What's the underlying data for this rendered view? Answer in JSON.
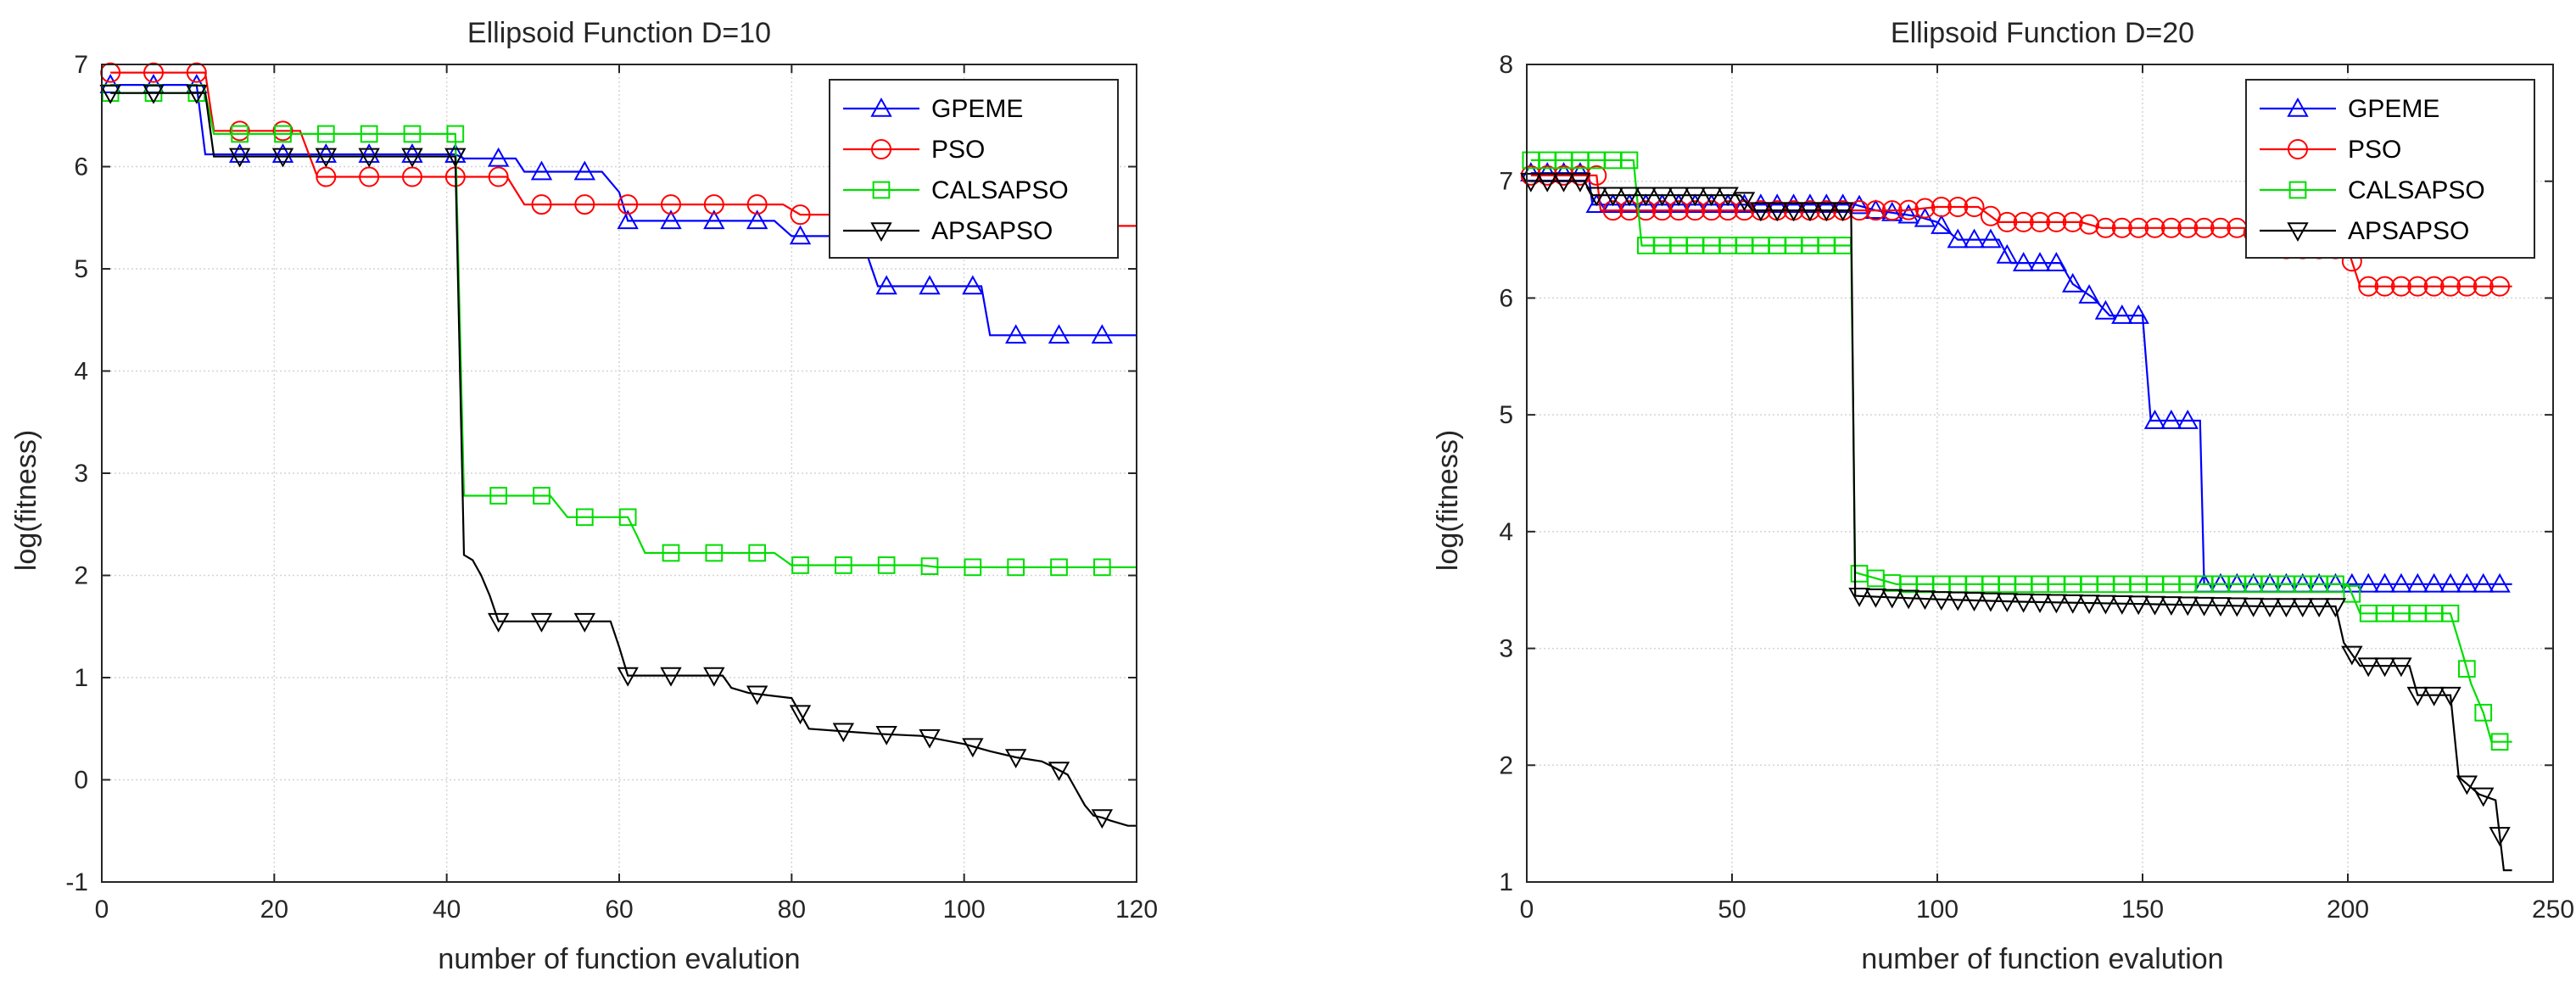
{
  "chart_data": [
    {
      "type": "line",
      "title": "Ellipsoid Function D=10",
      "xlabel": "number of function evalution",
      "ylabel": "log(fitness)",
      "xlim": [
        0,
        120
      ],
      "ylim": [
        -1,
        7
      ],
      "xticks": [
        0,
        20,
        40,
        60,
        80,
        100,
        120
      ],
      "yticks": [
        -1,
        0,
        1,
        2,
        3,
        4,
        5,
        6,
        7
      ],
      "grid": true,
      "legend_position": "top-right",
      "marker_every": 5,
      "series": [
        {
          "name": "GPEME",
          "color": "#0000ff",
          "marker": "triangle-up",
          "points": [
            [
              1,
              6.8
            ],
            [
              11,
              6.8
            ],
            [
              12,
              6.12
            ],
            [
              41,
              6.12
            ],
            [
              42,
              6.08
            ],
            [
              48,
              6.08
            ],
            [
              49,
              5.95
            ],
            [
              58,
              5.95
            ],
            [
              60,
              5.75
            ],
            [
              61,
              5.47
            ],
            [
              78,
              5.47
            ],
            [
              80,
              5.32
            ],
            [
              88,
              5.32
            ],
            [
              90,
              4.83
            ],
            [
              102,
              4.83
            ],
            [
              103,
              4.35
            ],
            [
              120,
              4.35
            ]
          ]
        },
        {
          "name": "PSO",
          "color": "#ff0000",
          "marker": "circle",
          "points": [
            [
              1,
              6.92
            ],
            [
              12,
              6.92
            ],
            [
              13,
              6.35
            ],
            [
              23,
              6.35
            ],
            [
              25,
              5.9
            ],
            [
              41,
              5.9
            ],
            [
              42,
              5.9
            ],
            [
              47,
              5.9
            ],
            [
              49,
              5.63
            ],
            [
              61,
              5.63
            ],
            [
              62,
              5.63
            ],
            [
              79,
              5.63
            ],
            [
              81,
              5.53
            ],
            [
              99,
              5.53
            ],
            [
              101,
              5.42
            ],
            [
              120,
              5.42
            ]
          ]
        },
        {
          "name": "CALSAPSO",
          "color": "#00dd00",
          "marker": "square",
          "points": [
            [
              1,
              6.72
            ],
            [
              12,
              6.72
            ],
            [
              13,
              6.32
            ],
            [
              41,
              6.32
            ],
            [
              42,
              2.78
            ],
            [
              52,
              2.78
            ],
            [
              54,
              2.57
            ],
            [
              61,
              2.57
            ],
            [
              62,
              2.4
            ],
            [
              63,
              2.22
            ],
            [
              78,
              2.22
            ],
            [
              80,
              2.1
            ],
            [
              95,
              2.1
            ],
            [
              97,
              2.08
            ],
            [
              120,
              2.08
            ]
          ]
        },
        {
          "name": "APSAPSO",
          "color": "#000000",
          "marker": "triangle-down",
          "points": [
            [
              1,
              6.72
            ],
            [
              12,
              6.72
            ],
            [
              13,
              6.1
            ],
            [
              41,
              6.1
            ],
            [
              42,
              2.2
            ],
            [
              43,
              2.15
            ],
            [
              44,
              2.0
            ],
            [
              45,
              1.8
            ],
            [
              46,
              1.55
            ],
            [
              59,
              1.55
            ],
            [
              60,
              1.3
            ],
            [
              61,
              1.02
            ],
            [
              72,
              1.02
            ],
            [
              73,
              0.9
            ],
            [
              75,
              0.85
            ],
            [
              80,
              0.8
            ],
            [
              82,
              0.5
            ],
            [
              90,
              0.45
            ],
            [
              95,
              0.43
            ],
            [
              100,
              0.35
            ],
            [
              103,
              0.28
            ],
            [
              106,
              0.22
            ],
            [
              109,
              0.18
            ],
            [
              110,
              0.14
            ],
            [
              112,
              0.05
            ],
            [
              113,
              -0.1
            ],
            [
              114,
              -0.25
            ],
            [
              115,
              -0.35
            ],
            [
              116,
              -0.37
            ],
            [
              117,
              -0.4
            ],
            [
              119,
              -0.45
            ],
            [
              120,
              -0.45
            ]
          ]
        }
      ]
    },
    {
      "type": "line",
      "title": "Ellipsoid Function D=20",
      "xlabel": "number of function evalution",
      "ylabel": "log(fitness)",
      "xlim": [
        0,
        250
      ],
      "ylim": [
        1,
        8
      ],
      "xticks": [
        0,
        50,
        100,
        150,
        200,
        250
      ],
      "yticks": [
        1,
        2,
        3,
        4,
        5,
        6,
        7,
        8
      ],
      "grid": true,
      "legend_position": "top-right",
      "marker_every": 4,
      "series": [
        {
          "name": "GPEME",
          "color": "#0000ff",
          "marker": "triangle-up",
          "points": [
            [
              1,
              7.07
            ],
            [
              15,
              7.07
            ],
            [
              16,
              6.8
            ],
            [
              80,
              6.8
            ],
            [
              85,
              6.75
            ],
            [
              95,
              6.7
            ],
            [
              100,
              6.65
            ],
            [
              105,
              6.5
            ],
            [
              115,
              6.5
            ],
            [
              118,
              6.3
            ],
            [
              130,
              6.3
            ],
            [
              133,
              6.12
            ],
            [
              138,
              6.0
            ],
            [
              142,
              5.85
            ],
            [
              150,
              5.85
            ],
            [
              152,
              4.95
            ],
            [
              164,
              4.95
            ],
            [
              165,
              3.55
            ],
            [
              240,
              3.55
            ]
          ]
        },
        {
          "name": "PSO",
          "color": "#ff0000",
          "marker": "circle",
          "points": [
            [
              1,
              7.05
            ],
            [
              17,
              7.05
            ],
            [
              18,
              6.75
            ],
            [
              92,
              6.75
            ],
            [
              100,
              6.78
            ],
            [
              110,
              6.78
            ],
            [
              115,
              6.65
            ],
            [
              135,
              6.65
            ],
            [
              140,
              6.6
            ],
            [
              175,
              6.6
            ],
            [
              180,
              6.5
            ],
            [
              185,
              6.42
            ],
            [
              200,
              6.42
            ],
            [
              203,
              6.1
            ],
            [
              240,
              6.1
            ]
          ]
        },
        {
          "name": "CALSAPSO",
          "color": "#00dd00",
          "marker": "square",
          "points": [
            [
              1,
              7.18
            ],
            [
              26,
              7.18
            ],
            [
              28,
              6.45
            ],
            [
              79,
              6.45
            ],
            [
              80,
              3.65
            ],
            [
              85,
              3.6
            ],
            [
              90,
              3.55
            ],
            [
              200,
              3.55
            ],
            [
              203,
              3.3
            ],
            [
              225,
              3.3
            ],
            [
              228,
              2.95
            ],
            [
              230,
              2.7
            ],
            [
              233,
              2.45
            ],
            [
              235,
              2.2
            ],
            [
              240,
              2.2
            ]
          ]
        },
        {
          "name": "APSAPSO",
          "color": "#000000",
          "marker": "triangle-down",
          "points": [
            [
              1,
              7.0
            ],
            [
              14,
              7.0
            ],
            [
              16,
              6.88
            ],
            [
              52,
              6.88
            ],
            [
              55,
              6.75
            ],
            [
              79,
              6.75
            ],
            [
              80,
              3.45
            ],
            [
              100,
              3.42
            ],
            [
              120,
              3.4
            ],
            [
              150,
              3.38
            ],
            [
              180,
              3.36
            ],
            [
              197,
              3.36
            ],
            [
              199,
              3.05
            ],
            [
              203,
              2.85
            ],
            [
              215,
              2.85
            ],
            [
              217,
              2.6
            ],
            [
              225,
              2.6
            ],
            [
              227,
              1.9
            ],
            [
              232,
              1.75
            ],
            [
              236,
              1.7
            ],
            [
              238,
              1.1
            ],
            [
              240,
              1.1
            ]
          ]
        }
      ]
    }
  ]
}
